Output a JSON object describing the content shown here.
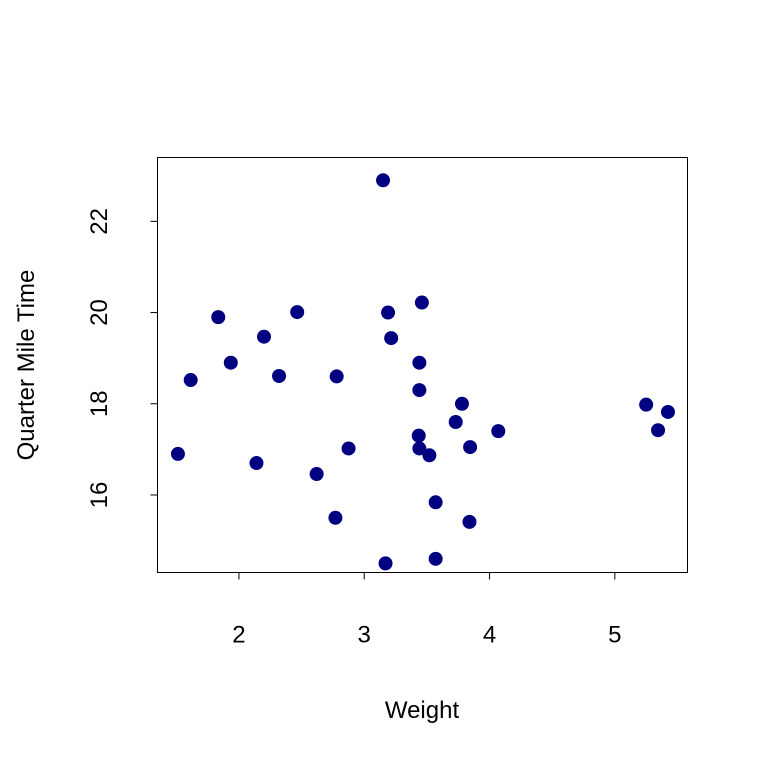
{
  "chart_data": {
    "type": "scatter",
    "title": "",
    "xlabel": "Weight",
    "ylabel": "Quarter Mile Time",
    "xlim": [
      1.35,
      5.58
    ],
    "ylim": [
      14.3,
      23.4
    ],
    "x_ticks": [
      2,
      3,
      4,
      5
    ],
    "y_ticks": [
      16,
      18,
      20,
      22
    ],
    "grid": false,
    "legend": "none",
    "point_color": "#000080",
    "series": [
      {
        "x": [
          2.62,
          2.875,
          2.32,
          3.215,
          3.44,
          3.46,
          3.57,
          3.19,
          3.15,
          3.44,
          3.44,
          4.07,
          3.73,
          3.78,
          5.25,
          5.424,
          5.345,
          2.2,
          1.615,
          1.835,
          2.465,
          3.52,
          3.435,
          3.84,
          3.845,
          1.935,
          2.14,
          1.513,
          3.17,
          2.77,
          3.57,
          2.78
        ],
        "y": [
          16.46,
          17.02,
          18.61,
          19.44,
          17.02,
          20.22,
          15.84,
          20.0,
          22.9,
          18.3,
          18.9,
          17.4,
          17.6,
          18.0,
          17.98,
          17.82,
          17.42,
          19.47,
          18.52,
          19.9,
          20.01,
          16.87,
          17.3,
          15.41,
          17.05,
          18.9,
          16.7,
          16.9,
          14.5,
          15.5,
          14.6,
          18.6
        ]
      }
    ]
  }
}
